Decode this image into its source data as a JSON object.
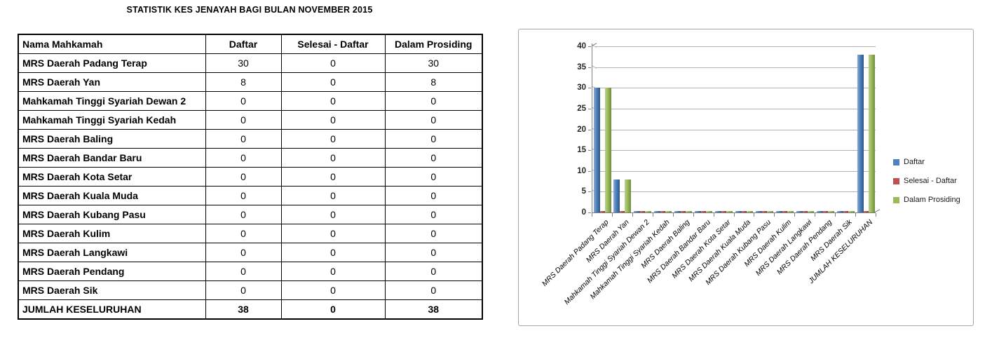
{
  "title": "STATISTIK KES JENAYAH BAGI BULAN NOVEMBER 2015",
  "table": {
    "columns": [
      "Nama Mahkamah",
      "Daftar",
      "Selesai - Daftar",
      "Dalam Prosiding"
    ],
    "rows": [
      {
        "name": "MRS Daerah Padang Terap",
        "daftar": "30",
        "selesai": "0",
        "dalam": "30"
      },
      {
        "name": "MRS Daerah Yan",
        "daftar": "8",
        "selesai": "0",
        "dalam": "8"
      },
      {
        "name": "Mahkamah Tinggi Syariah Dewan 2",
        "daftar": "0",
        "selesai": "0",
        "dalam": "0"
      },
      {
        "name": "Mahkamah Tinggi Syariah Kedah",
        "daftar": "0",
        "selesai": "0",
        "dalam": "0"
      },
      {
        "name": "MRS Daerah Baling",
        "daftar": "0",
        "selesai": "0",
        "dalam": "0"
      },
      {
        "name": "MRS Daerah Bandar Baru",
        "daftar": "0",
        "selesai": "0",
        "dalam": "0"
      },
      {
        "name": "MRS Daerah Kota Setar",
        "daftar": "0",
        "selesai": "0",
        "dalam": "0"
      },
      {
        "name": "MRS Daerah Kuala Muda",
        "daftar": "0",
        "selesai": "0",
        "dalam": "0"
      },
      {
        "name": "MRS Daerah Kubang Pasu",
        "daftar": "0",
        "selesai": "0",
        "dalam": "0"
      },
      {
        "name": "MRS Daerah Kulim",
        "daftar": "0",
        "selesai": "0",
        "dalam": "0"
      },
      {
        "name": "MRS Daerah Langkawi",
        "daftar": "0",
        "selesai": "0",
        "dalam": "0"
      },
      {
        "name": "MRS Daerah Pendang",
        "daftar": "0",
        "selesai": "0",
        "dalam": "0"
      },
      {
        "name": "MRS Daerah Sik",
        "daftar": "0",
        "selesai": "0",
        "dalam": "0"
      }
    ],
    "total": {
      "name": "JUMLAH KESELURUHAN",
      "daftar": "38",
      "selesai": "0",
      "dalam": "38"
    }
  },
  "chart_data": {
    "type": "bar",
    "title": "",
    "xlabel": "",
    "ylabel": "",
    "categories": [
      "MRS Daerah Padang Terap",
      "MRS Daerah Yan",
      "Mahkamah Tinggi Syariah Dewan 2",
      "Mahkamah Tinggi Syariah Kedah",
      "MRS Daerah Baling",
      "MRS Daerah Bandar Baru",
      "MRS Daerah Kota Setar",
      "MRS Daerah Kuala Muda",
      "MRS Daerah Kubang Pasu",
      "MRS Daerah Kulim",
      "MRS Daerah Langkawi",
      "MRS Daerah Pendang",
      "MRS Daerah Sik",
      "JUMLAH KESELURUHAN"
    ],
    "series": [
      {
        "name": "Daftar",
        "color": "#4F81BD",
        "values": [
          30,
          8,
          0,
          0,
          0,
          0,
          0,
          0,
          0,
          0,
          0,
          0,
          0,
          38
        ]
      },
      {
        "name": "Selesai - Daftar",
        "color": "#C0504D",
        "values": [
          0,
          0,
          0,
          0,
          0,
          0,
          0,
          0,
          0,
          0,
          0,
          0,
          0,
          0
        ]
      },
      {
        "name": "Dalam Prosiding",
        "color": "#9BBB59",
        "values": [
          30,
          8,
          0,
          0,
          0,
          0,
          0,
          0,
          0,
          0,
          0,
          0,
          0,
          38
        ]
      }
    ],
    "ylim": [
      0,
      40
    ],
    "ytick_step": 5,
    "grid": true,
    "legend_position": "right",
    "gridline_color": "#b3b3b3",
    "axis_color": "#808080"
  }
}
